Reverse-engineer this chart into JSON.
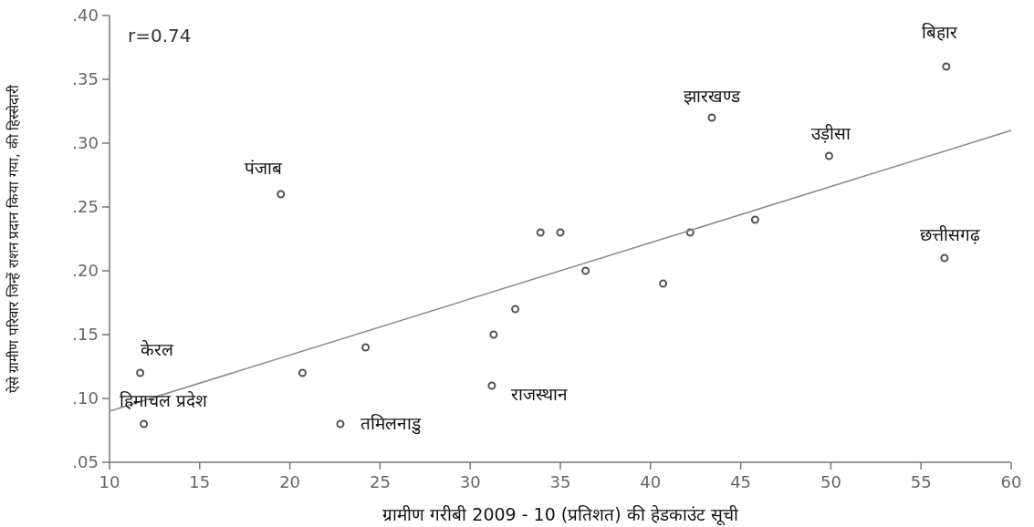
{
  "chart_data": {
    "type": "scatter",
    "xlabel": "ग्रामीण गरीबी 2009 - 10 (प्रतिशत) की हेडकाउंट सूची",
    "ylabel": "ऐसे ग्रामीण परिवार जिन्हें राशन प्रदान किया गया, की हिस्सेदारी",
    "xlim": [
      10,
      60
    ],
    "ylim": [
      0.05,
      0.4
    ],
    "xticks": [
      10,
      15,
      20,
      25,
      30,
      35,
      40,
      45,
      50,
      55,
      60
    ],
    "yticks": [
      {
        "value": 0.05,
        "label": ".05"
      },
      {
        "value": 0.1,
        "label": ".10"
      },
      {
        "value": 0.15,
        "label": ".15"
      },
      {
        "value": 0.2,
        "label": ".20"
      },
      {
        "value": 0.25,
        "label": ".25"
      },
      {
        "value": 0.3,
        "label": ".30"
      },
      {
        "value": 0.35,
        "label": ".35"
      },
      {
        "value": 0.4,
        "label": ".40"
      }
    ],
    "grid": false,
    "series": [
      {
        "marker": "circle",
        "color": "#555555",
        "x": [
          11.7,
          11.9,
          19.5,
          20.7,
          22.8,
          24.2,
          31.3,
          31.2,
          32.5,
          33.9,
          35.0,
          36.4,
          40.7,
          42.2,
          43.4,
          45.8,
          49.9,
          56.4,
          56.3
        ],
        "values": [
          0.12,
          0.08,
          0.26,
          0.12,
          0.08,
          0.14,
          0.15,
          0.11,
          0.17,
          0.23,
          0.23,
          0.2,
          0.19,
          0.23,
          0.32,
          0.24,
          0.29,
          0.36,
          0.21
        ]
      },
      {
        "type": "line",
        "color": "#888888",
        "x": [
          10,
          60
        ],
        "values": [
          0.09,
          0.31
        ]
      }
    ],
    "annotations": [
      "r=0.74",
      {
        "text": "केरल",
        "x": 11.7,
        "y": 0.12
      },
      {
        "text": "हिमाचल प्रदेश",
        "x": 11.9,
        "y": 0.08
      },
      {
        "text": "पंजाब",
        "x": 19.5,
        "y": 0.26
      },
      {
        "text": "तमिलनाडु",
        "x": 22.8,
        "y": 0.08
      },
      {
        "text": "राजस्थान",
        "x": 31.2,
        "y": 0.11
      },
      {
        "text": "झारखण्ड",
        "x": 43.4,
        "y": 0.32
      },
      {
        "text": "उड़ीसा",
        "x": 49.9,
        "y": 0.29
      },
      {
        "text": "बिहार",
        "x": 56.4,
        "y": 0.36
      },
      {
        "text": "छत्तीसगढ़",
        "x": 56.3,
        "y": 0.21
      }
    ]
  }
}
